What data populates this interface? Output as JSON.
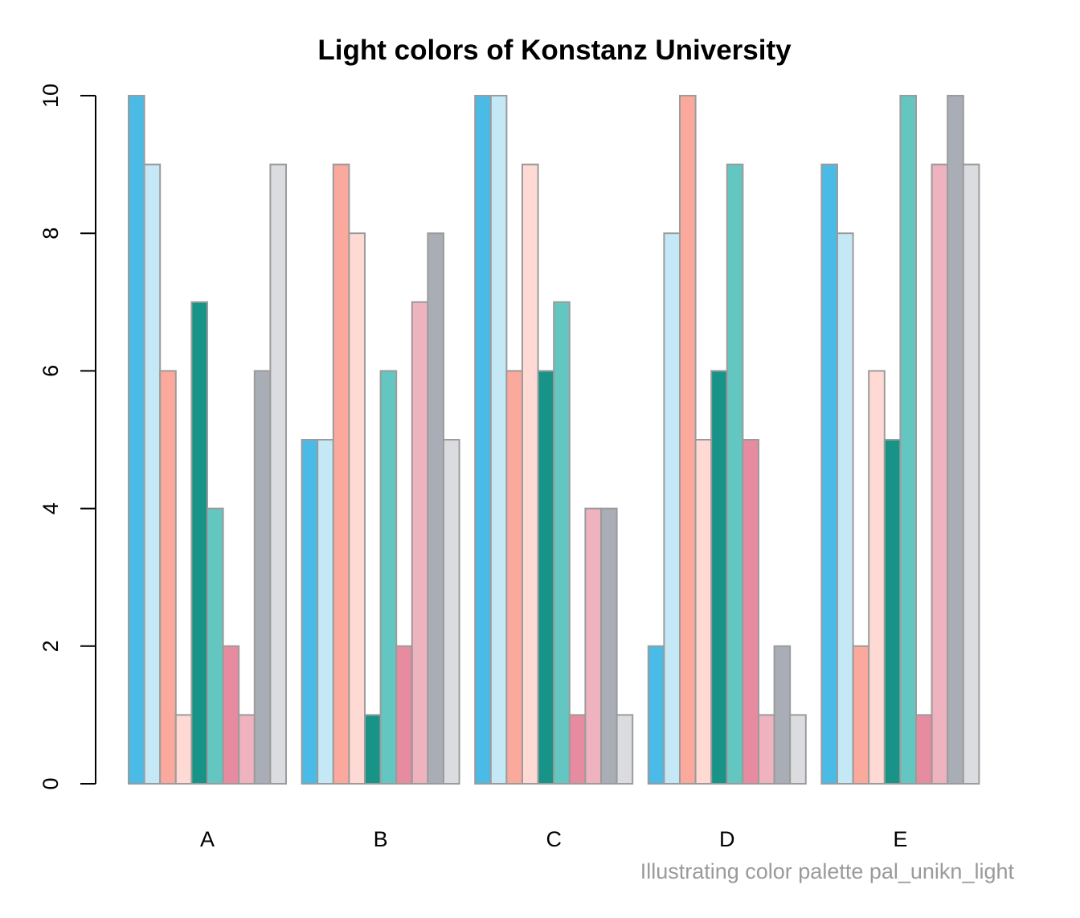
{
  "chart_data": {
    "type": "bar",
    "title": "Light colors of Konstanz University",
    "caption": "Illustrating color palette pal_unikn_light",
    "categories": [
      "A",
      "B",
      "C",
      "D",
      "E"
    ],
    "ylim": [
      0,
      10
    ],
    "yticks": [
      "0",
      "2",
      "4",
      "6",
      "8",
      "10"
    ],
    "grid": false,
    "legend": "none",
    "series_colors": [
      "#4ABBE6",
      "#C4E8F5",
      "#FBA99D",
      "#FFDAD4",
      "#179487",
      "#63C6C0",
      "#E78BA0",
      "#EEB3BE",
      "#A9ADB5",
      "#DADCE0"
    ],
    "bar_border_color": "#9b9b9b",
    "series": [
      {
        "values": [
          10,
          5,
          10,
          2,
          9
        ]
      },
      {
        "values": [
          9,
          5,
          10,
          8,
          8
        ]
      },
      {
        "values": [
          6,
          9,
          6,
          10,
          2
        ]
      },
      {
        "values": [
          1,
          8,
          9,
          5,
          6
        ]
      },
      {
        "values": [
          7,
          1,
          6,
          6,
          5
        ]
      },
      {
        "values": [
          4,
          6,
          7,
          9,
          10
        ]
      },
      {
        "values": [
          2,
          2,
          1,
          5,
          1
        ]
      },
      {
        "values": [
          1,
          7,
          4,
          1,
          9
        ]
      },
      {
        "values": [
          6,
          8,
          4,
          2,
          10
        ]
      },
      {
        "values": [
          9,
          5,
          1,
          1,
          9
        ]
      }
    ]
  }
}
